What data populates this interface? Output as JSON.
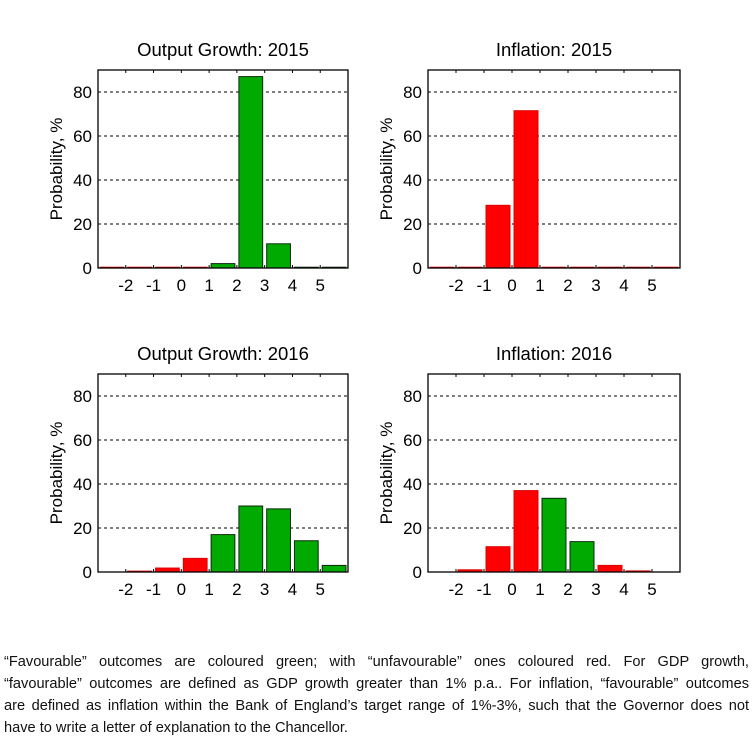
{
  "colors": {
    "favourable": "#00AA00",
    "unfavourable": "#FF0000",
    "favourable_outline": "#0a2a0a",
    "unfavourable_outline": "#dd0000",
    "grid": "#000000"
  },
  "chart_data": [
    {
      "type": "bar",
      "title": "Output Growth: 2015",
      "xlabel": "",
      "ylabel": "Probability, %",
      "xlim": [
        -3,
        6
      ],
      "ylim": [
        0,
        90
      ],
      "xticks": [
        -2,
        -1,
        0,
        1,
        2,
        3,
        4,
        5
      ],
      "yticks": [
        0,
        20,
        40,
        60,
        80
      ],
      "grid": "horizontal-dashed",
      "favourable_rule": "growth > 1%",
      "bins": [
        {
          "from": -3,
          "to": -2,
          "value": 0,
          "favourable": false
        },
        {
          "from": -2,
          "to": -1,
          "value": 0,
          "favourable": false
        },
        {
          "from": -1,
          "to": 0,
          "value": 0,
          "favourable": false
        },
        {
          "from": 0,
          "to": 1,
          "value": 0,
          "favourable": false
        },
        {
          "from": 1,
          "to": 2,
          "value": 2,
          "favourable": true
        },
        {
          "from": 2,
          "to": 3,
          "value": 87,
          "favourable": true
        },
        {
          "from": 3,
          "to": 4,
          "value": 11,
          "favourable": true
        },
        {
          "from": 4,
          "to": 5,
          "value": 0,
          "favourable": true
        },
        {
          "from": 5,
          "to": 6,
          "value": 0,
          "favourable": true
        }
      ]
    },
    {
      "type": "bar",
      "title": "Inflation: 2015",
      "xlabel": "",
      "ylabel": "Probability, %",
      "xlim": [
        -3,
        6
      ],
      "ylim": [
        0,
        90
      ],
      "xticks": [
        -2,
        -1,
        0,
        1,
        2,
        3,
        4,
        5
      ],
      "yticks": [
        0,
        20,
        40,
        60,
        80
      ],
      "grid": "horizontal-dashed",
      "favourable_rule": "1% <= inflation <= 3%",
      "bins": [
        {
          "from": -3,
          "to": -2,
          "value": 0,
          "favourable": false
        },
        {
          "from": -2,
          "to": -1,
          "value": 0,
          "favourable": false
        },
        {
          "from": -1,
          "to": 0,
          "value": 28.5,
          "favourable": false
        },
        {
          "from": 0,
          "to": 1,
          "value": 71.5,
          "favourable": false
        },
        {
          "from": 1,
          "to": 2,
          "value": 0,
          "favourable": false
        },
        {
          "from": 2,
          "to": 3,
          "value": 0,
          "favourable": false
        },
        {
          "from": 3,
          "to": 4,
          "value": 0,
          "favourable": false
        },
        {
          "from": 4,
          "to": 5,
          "value": 0,
          "favourable": false
        },
        {
          "from": 5,
          "to": 6,
          "value": 0,
          "favourable": false
        }
      ]
    },
    {
      "type": "bar",
      "title": "Output Growth: 2016",
      "xlabel": "",
      "ylabel": "Probability, %",
      "xlim": [
        -3,
        6
      ],
      "ylim": [
        0,
        90
      ],
      "xticks": [
        -2,
        -1,
        0,
        1,
        2,
        3,
        4,
        5
      ],
      "yticks": [
        0,
        20,
        40,
        60,
        80
      ],
      "grid": "horizontal-dashed",
      "favourable_rule": "growth > 1%",
      "bins": [
        {
          "from": -2,
          "to": -1,
          "value": 0.4,
          "favourable": false
        },
        {
          "from": -1,
          "to": 0,
          "value": 1.8,
          "favourable": false
        },
        {
          "from": 0,
          "to": 1,
          "value": 6.2,
          "favourable": false
        },
        {
          "from": 1,
          "to": 2,
          "value": 17,
          "favourable": true
        },
        {
          "from": 2,
          "to": 3,
          "value": 30,
          "favourable": true
        },
        {
          "from": 3,
          "to": 4,
          "value": 28.7,
          "favourable": true
        },
        {
          "from": 4,
          "to": 5,
          "value": 14.2,
          "favourable": true
        },
        {
          "from": 5,
          "to": 6,
          "value": 3,
          "favourable": true
        }
      ]
    },
    {
      "type": "bar",
      "title": "Inflation: 2016",
      "xlabel": "",
      "ylabel": "Probability, %",
      "xlim": [
        -3,
        6
      ],
      "ylim": [
        0,
        90
      ],
      "xticks": [
        -2,
        -1,
        0,
        1,
        2,
        3,
        4,
        5
      ],
      "yticks": [
        0,
        20,
        40,
        60,
        80
      ],
      "grid": "horizontal-dashed",
      "favourable_rule": "1% <= inflation <= 3%",
      "bins": [
        {
          "from": -2,
          "to": -1,
          "value": 1,
          "favourable": false
        },
        {
          "from": -1,
          "to": 0,
          "value": 11.5,
          "favourable": false
        },
        {
          "from": 0,
          "to": 1,
          "value": 37,
          "favourable": false
        },
        {
          "from": 1,
          "to": 2,
          "value": 33.5,
          "favourable": true
        },
        {
          "from": 2,
          "to": 3,
          "value": 13.8,
          "favourable": true
        },
        {
          "from": 3,
          "to": 4,
          "value": 3,
          "favourable": false
        },
        {
          "from": 4,
          "to": 5,
          "value": 0.5,
          "favourable": false
        }
      ]
    }
  ],
  "caption": {
    "lines": [
      "“Favourable” outcomes are coloured green; with “unfavourable” ones coloured red. For GDP growth,",
      "“favourable” outcomes are defined as GDP growth greater than 1% p.a.. For inflation, “favourable” outcomes",
      "are defined as inflation within the Bank of England’s target range of 1%-3%, such that the Governor does not",
      "have to write a letter of explanation to the Chancellor."
    ]
  }
}
